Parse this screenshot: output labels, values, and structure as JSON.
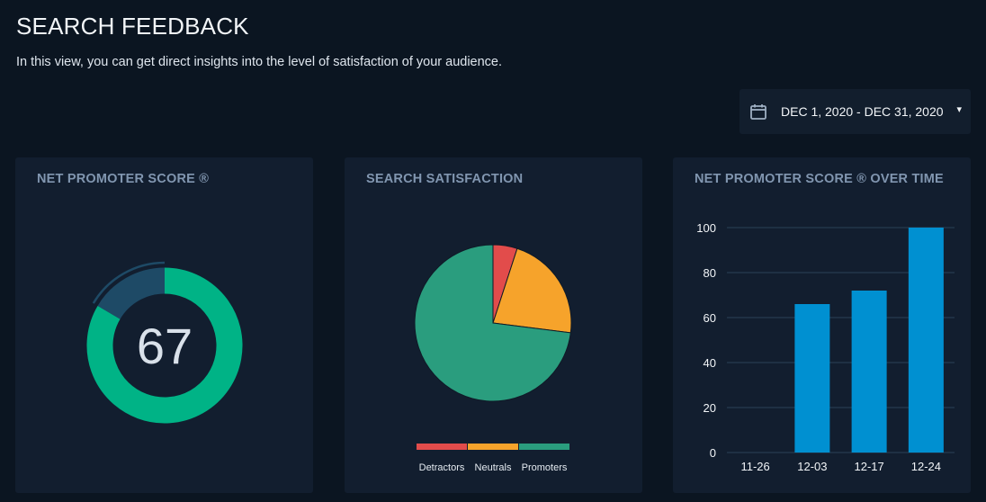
{
  "header": {
    "title": "SEARCH FEEDBACK",
    "subtitle": "In this view, you can get direct insights into the level of satisfaction of your audience."
  },
  "date_picker": {
    "icon": "calendar-icon",
    "value": "DEC 1, 2020 - DEC 31, 2020",
    "caret": "▾"
  },
  "cards": {
    "nps": {
      "title": "NET PROMOTER SCORE ®"
    },
    "satisfaction": {
      "title": "SEARCH SATISFACTION"
    },
    "nps_over_time": {
      "title": "NET PROMOTER SCORE ® OVER TIME"
    }
  },
  "colors": {
    "background": "#0b1521",
    "card": "#121e2f",
    "card_title": "#8196b0",
    "gauge_fill": "#00b386",
    "gauge_track": "#1e4a66",
    "detractors": "#e24c4b",
    "neutrals": "#f6a32b",
    "promoters": "#2a9d7e",
    "bar": "#0090d1",
    "grid": "#2a4257"
  },
  "chart_data": [
    {
      "type": "gauge",
      "title": "NET PROMOTER SCORE ®",
      "value": 67,
      "display": "67",
      "range": [
        -100,
        100
      ]
    },
    {
      "type": "pie",
      "title": "SEARCH SATISFACTION",
      "slices": [
        {
          "label": "Detractors",
          "value": 5,
          "color": "#e24c4b"
        },
        {
          "label": "Neutrals",
          "value": 22,
          "color": "#f6a32b"
        },
        {
          "label": "Promoters",
          "value": 73,
          "color": "#2a9d7e"
        }
      ],
      "legend_position": "bottom"
    },
    {
      "type": "bar",
      "title": "NET PROMOTER SCORE ® OVER TIME",
      "categories": [
        "11-26",
        "12-03",
        "12-17",
        "12-24"
      ],
      "values": [
        0,
        66,
        72,
        100
      ],
      "ylim": [
        0,
        100
      ],
      "yticks": [
        0,
        20,
        40,
        60,
        80,
        100
      ],
      "grid": true
    }
  ]
}
